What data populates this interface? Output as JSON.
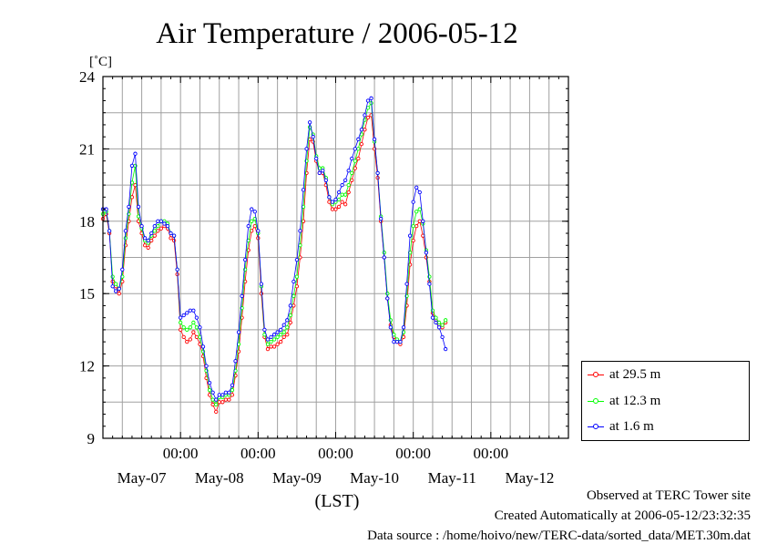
{
  "chart_data": {
    "type": "line",
    "title": "Air Temperature / 2006-05-12",
    "unit_label": "[˚C]",
    "xlabel": "(LST)",
    "ylim": [
      9,
      24
    ],
    "yticks": [
      "9",
      "12",
      "15",
      "18",
      "21",
      "24"
    ],
    "x_range_hours": [
      0,
      144
    ],
    "x_tick_labels": [
      "00:00",
      "00:00",
      "00:00",
      "00:00",
      "00:00"
    ],
    "date_labels": [
      "May-07",
      "May-08",
      "May-09",
      "May-10",
      "May-11",
      "May-12"
    ],
    "grid": true,
    "legend_position": "right",
    "series": [
      {
        "name": "at 29.5 m",
        "color": "#ff0000",
        "points": [
          [
            0,
            18.1
          ],
          [
            1,
            18.3
          ],
          [
            2,
            17.5
          ],
          [
            3,
            15.5
          ],
          [
            4,
            15.3
          ],
          [
            5,
            15.0
          ],
          [
            6,
            15.5
          ],
          [
            7,
            17.0
          ],
          [
            8,
            18.0
          ],
          [
            9,
            19.0
          ],
          [
            10,
            19.5
          ],
          [
            11,
            18.0
          ],
          [
            12,
            17.5
          ],
          [
            13,
            17.0
          ],
          [
            14,
            16.9
          ],
          [
            15,
            17.2
          ],
          [
            16,
            17.4
          ],
          [
            17,
            17.6
          ],
          [
            18,
            17.7
          ],
          [
            19,
            17.8
          ],
          [
            20,
            17.7
          ],
          [
            21,
            17.3
          ],
          [
            22,
            17.2
          ],
          [
            23,
            15.8
          ],
          [
            24,
            13.5
          ],
          [
            25,
            13.2
          ],
          [
            26,
            13.0
          ],
          [
            27,
            13.1
          ],
          [
            28,
            13.4
          ],
          [
            29,
            13.2
          ],
          [
            30,
            12.9
          ],
          [
            31,
            12.4
          ],
          [
            32,
            11.5
          ],
          [
            33,
            10.8
          ],
          [
            34,
            10.4
          ],
          [
            35,
            10.1
          ],
          [
            36,
            10.5
          ],
          [
            37,
            10.5
          ],
          [
            38,
            10.6
          ],
          [
            39,
            10.6
          ],
          [
            40,
            10.8
          ],
          [
            41,
            11.6
          ],
          [
            42,
            12.6
          ],
          [
            43,
            14.0
          ],
          [
            44,
            15.5
          ],
          [
            45,
            16.8
          ],
          [
            46,
            17.6
          ],
          [
            47,
            17.8
          ],
          [
            48,
            17.3
          ],
          [
            49,
            15.0
          ],
          [
            50,
            13.2
          ],
          [
            51,
            12.7
          ],
          [
            52,
            12.8
          ],
          [
            53,
            12.8
          ],
          [
            54,
            12.9
          ],
          [
            55,
            13.0
          ],
          [
            56,
            13.2
          ],
          [
            57,
            13.3
          ],
          [
            58,
            13.8
          ],
          [
            59,
            14.5
          ],
          [
            60,
            15.3
          ],
          [
            61,
            16.5
          ],
          [
            62,
            18.0
          ],
          [
            63,
            20.0
          ],
          [
            64,
            21.4
          ],
          [
            65,
            21.3
          ],
          [
            66,
            20.5
          ],
          [
            67,
            20.0
          ],
          [
            68,
            20.0
          ],
          [
            69,
            19.5
          ],
          [
            70,
            18.8
          ],
          [
            71,
            18.5
          ],
          [
            72,
            18.5
          ],
          [
            73,
            18.6
          ],
          [
            74,
            18.8
          ],
          [
            75,
            18.7
          ],
          [
            76,
            19.2
          ],
          [
            77,
            19.7
          ],
          [
            78,
            20.2
          ],
          [
            79,
            20.6
          ],
          [
            80,
            21.2
          ],
          [
            81,
            21.8
          ],
          [
            82,
            22.3
          ],
          [
            83,
            22.4
          ],
          [
            84,
            21.0
          ],
          [
            85,
            19.8
          ],
          [
            86,
            18.0
          ],
          [
            87,
            16.5
          ],
          [
            88,
            14.8
          ],
          [
            89,
            13.7
          ],
          [
            90,
            13.2
          ],
          [
            91,
            13.0
          ],
          [
            92,
            12.9
          ],
          [
            93,
            13.2
          ],
          [
            94,
            14.5
          ],
          [
            95,
            16.2
          ],
          [
            96,
            17.2
          ],
          [
            97,
            17.8
          ],
          [
            98,
            18.0
          ],
          [
            99,
            17.4
          ],
          [
            100,
            16.5
          ],
          [
            101,
            15.5
          ],
          [
            102,
            14.2
          ],
          [
            103,
            13.9
          ],
          [
            104,
            13.7
          ],
          [
            105,
            13.6
          ],
          [
            106,
            13.8
          ]
        ]
      },
      {
        "name": "at 12.3 m",
        "color": "#00ff00",
        "points": [
          [
            0,
            18.3
          ],
          [
            1,
            18.4
          ],
          [
            2,
            17.6
          ],
          [
            3,
            15.7
          ],
          [
            4,
            15.4
          ],
          [
            5,
            15.2
          ],
          [
            6,
            15.7
          ],
          [
            7,
            17.3
          ],
          [
            8,
            18.3
          ],
          [
            9,
            19.6
          ],
          [
            10,
            20.3
          ],
          [
            11,
            18.2
          ],
          [
            12,
            17.7
          ],
          [
            13,
            17.2
          ],
          [
            14,
            17.1
          ],
          [
            15,
            17.4
          ],
          [
            16,
            17.6
          ],
          [
            17,
            17.8
          ],
          [
            18,
            18.0
          ],
          [
            19,
            18.0
          ],
          [
            20,
            17.9
          ],
          [
            21,
            17.5
          ],
          [
            22,
            17.4
          ],
          [
            23,
            16.0
          ],
          [
            24,
            13.8
          ],
          [
            25,
            13.6
          ],
          [
            26,
            13.5
          ],
          [
            27,
            13.6
          ],
          [
            28,
            13.8
          ],
          [
            29,
            13.6
          ],
          [
            30,
            13.2
          ],
          [
            31,
            12.6
          ],
          [
            32,
            11.8
          ],
          [
            33,
            11.0
          ],
          [
            34,
            10.6
          ],
          [
            35,
            10.4
          ],
          [
            36,
            10.7
          ],
          [
            37,
            10.7
          ],
          [
            38,
            10.8
          ],
          [
            39,
            10.8
          ],
          [
            40,
            11.0
          ],
          [
            41,
            11.8
          ],
          [
            42,
            12.9
          ],
          [
            43,
            14.4
          ],
          [
            44,
            16.0
          ],
          [
            45,
            17.2
          ],
          [
            46,
            18.0
          ],
          [
            47,
            18.1
          ],
          [
            48,
            17.5
          ],
          [
            49,
            15.3
          ],
          [
            50,
            13.3
          ],
          [
            51,
            12.9
          ],
          [
            52,
            13.0
          ],
          [
            53,
            13.1
          ],
          [
            54,
            13.2
          ],
          [
            55,
            13.3
          ],
          [
            56,
            13.4
          ],
          [
            57,
            13.6
          ],
          [
            58,
            14.1
          ],
          [
            59,
            14.9
          ],
          [
            60,
            15.7
          ],
          [
            61,
            17.0
          ],
          [
            62,
            18.6
          ],
          [
            63,
            20.5
          ],
          [
            64,
            21.9
          ],
          [
            65,
            21.6
          ],
          [
            66,
            20.7
          ],
          [
            67,
            20.2
          ],
          [
            68,
            20.2
          ],
          [
            69,
            19.8
          ],
          [
            70,
            19.0
          ],
          [
            71,
            18.7
          ],
          [
            72,
            18.8
          ],
          [
            73,
            18.9
          ],
          [
            74,
            19.1
          ],
          [
            75,
            19.1
          ],
          [
            76,
            19.5
          ],
          [
            77,
            20.0
          ],
          [
            78,
            20.5
          ],
          [
            79,
            21.0
          ],
          [
            80,
            21.6
          ],
          [
            81,
            22.2
          ],
          [
            82,
            22.7
          ],
          [
            83,
            22.9
          ],
          [
            84,
            21.3
          ],
          [
            85,
            20.0
          ],
          [
            86,
            18.2
          ],
          [
            87,
            16.7
          ],
          [
            88,
            15.0
          ],
          [
            89,
            13.9
          ],
          [
            90,
            13.3
          ],
          [
            91,
            13.1
          ],
          [
            92,
            13.0
          ],
          [
            93,
            13.4
          ],
          [
            94,
            14.9
          ],
          [
            95,
            16.7
          ],
          [
            96,
            17.8
          ],
          [
            97,
            18.4
          ],
          [
            98,
            18.5
          ],
          [
            99,
            17.9
          ],
          [
            100,
            16.8
          ],
          [
            101,
            15.7
          ],
          [
            102,
            14.3
          ],
          [
            103,
            14.0
          ],
          [
            104,
            13.8
          ],
          [
            105,
            13.7
          ],
          [
            106,
            13.9
          ]
        ]
      },
      {
        "name": "at 1.6 m",
        "color": "#0000ff",
        "points": [
          [
            0,
            18.5
          ],
          [
            1,
            18.5
          ],
          [
            2,
            17.6
          ],
          [
            3,
            15.3
          ],
          [
            4,
            15.1
          ],
          [
            5,
            15.2
          ],
          [
            6,
            16.0
          ],
          [
            7,
            17.6
          ],
          [
            8,
            18.6
          ],
          [
            9,
            20.3
          ],
          [
            10,
            20.8
          ],
          [
            11,
            18.6
          ],
          [
            12,
            17.8
          ],
          [
            13,
            17.3
          ],
          [
            14,
            17.2
          ],
          [
            15,
            17.5
          ],
          [
            16,
            17.8
          ],
          [
            17,
            18.0
          ],
          [
            18,
            18.0
          ],
          [
            19,
            17.9
          ],
          [
            20,
            17.8
          ],
          [
            21,
            17.5
          ],
          [
            22,
            17.4
          ],
          [
            23,
            16.0
          ],
          [
            24,
            14.0
          ],
          [
            25,
            14.1
          ],
          [
            26,
            14.2
          ],
          [
            27,
            14.3
          ],
          [
            28,
            14.3
          ],
          [
            29,
            14.0
          ],
          [
            30,
            13.6
          ],
          [
            31,
            12.8
          ],
          [
            32,
            12.0
          ],
          [
            33,
            11.3
          ],
          [
            34,
            10.9
          ],
          [
            35,
            10.6
          ],
          [
            36,
            10.8
          ],
          [
            37,
            10.8
          ],
          [
            38,
            10.9
          ],
          [
            39,
            10.9
          ],
          [
            40,
            11.2
          ],
          [
            41,
            12.2
          ],
          [
            42,
            13.4
          ],
          [
            43,
            14.9
          ],
          [
            44,
            16.4
          ],
          [
            45,
            17.8
          ],
          [
            46,
            18.5
          ],
          [
            47,
            18.4
          ],
          [
            48,
            17.6
          ],
          [
            49,
            15.4
          ],
          [
            50,
            13.5
          ],
          [
            51,
            13.1
          ],
          [
            52,
            13.2
          ],
          [
            53,
            13.3
          ],
          [
            54,
            13.4
          ],
          [
            55,
            13.5
          ],
          [
            56,
            13.7
          ],
          [
            57,
            13.9
          ],
          [
            58,
            14.5
          ],
          [
            59,
            15.5
          ],
          [
            60,
            16.4
          ],
          [
            61,
            17.6
          ],
          [
            62,
            19.3
          ],
          [
            63,
            21.0
          ],
          [
            64,
            22.1
          ],
          [
            65,
            21.5
          ],
          [
            66,
            20.6
          ],
          [
            67,
            20.0
          ],
          [
            68,
            20.1
          ],
          [
            69,
            19.7
          ],
          [
            70,
            19.0
          ],
          [
            71,
            18.8
          ],
          [
            72,
            18.9
          ],
          [
            73,
            19.2
          ],
          [
            74,
            19.5
          ],
          [
            75,
            19.7
          ],
          [
            76,
            20.1
          ],
          [
            77,
            20.6
          ],
          [
            78,
            21.0
          ],
          [
            79,
            21.4
          ],
          [
            80,
            21.8
          ],
          [
            81,
            22.4
          ],
          [
            82,
            23.0
          ],
          [
            83,
            23.1
          ],
          [
            84,
            21.4
          ],
          [
            85,
            20.0
          ],
          [
            86,
            18.1
          ],
          [
            87,
            16.5
          ],
          [
            88,
            14.8
          ],
          [
            89,
            13.6
          ],
          [
            90,
            13.0
          ],
          [
            91,
            13.0
          ],
          [
            92,
            13.0
          ],
          [
            93,
            13.6
          ],
          [
            94,
            15.4
          ],
          [
            95,
            17.4
          ],
          [
            96,
            18.8
          ],
          [
            97,
            19.4
          ],
          [
            98,
            19.2
          ],
          [
            99,
            18.0
          ],
          [
            100,
            16.7
          ],
          [
            101,
            15.4
          ],
          [
            102,
            14.0
          ],
          [
            103,
            13.8
          ],
          [
            104,
            13.6
          ],
          [
            105,
            13.2
          ],
          [
            106,
            12.7
          ]
        ]
      }
    ]
  },
  "footer": {
    "line1": "Observed at TERC Tower site",
    "line2": "Created Automatically at 2006-05-12/23:32:35",
    "line3": "Data source : /home/hoivo/new/TERC-data/sorted_data/MET.30m.dat"
  }
}
